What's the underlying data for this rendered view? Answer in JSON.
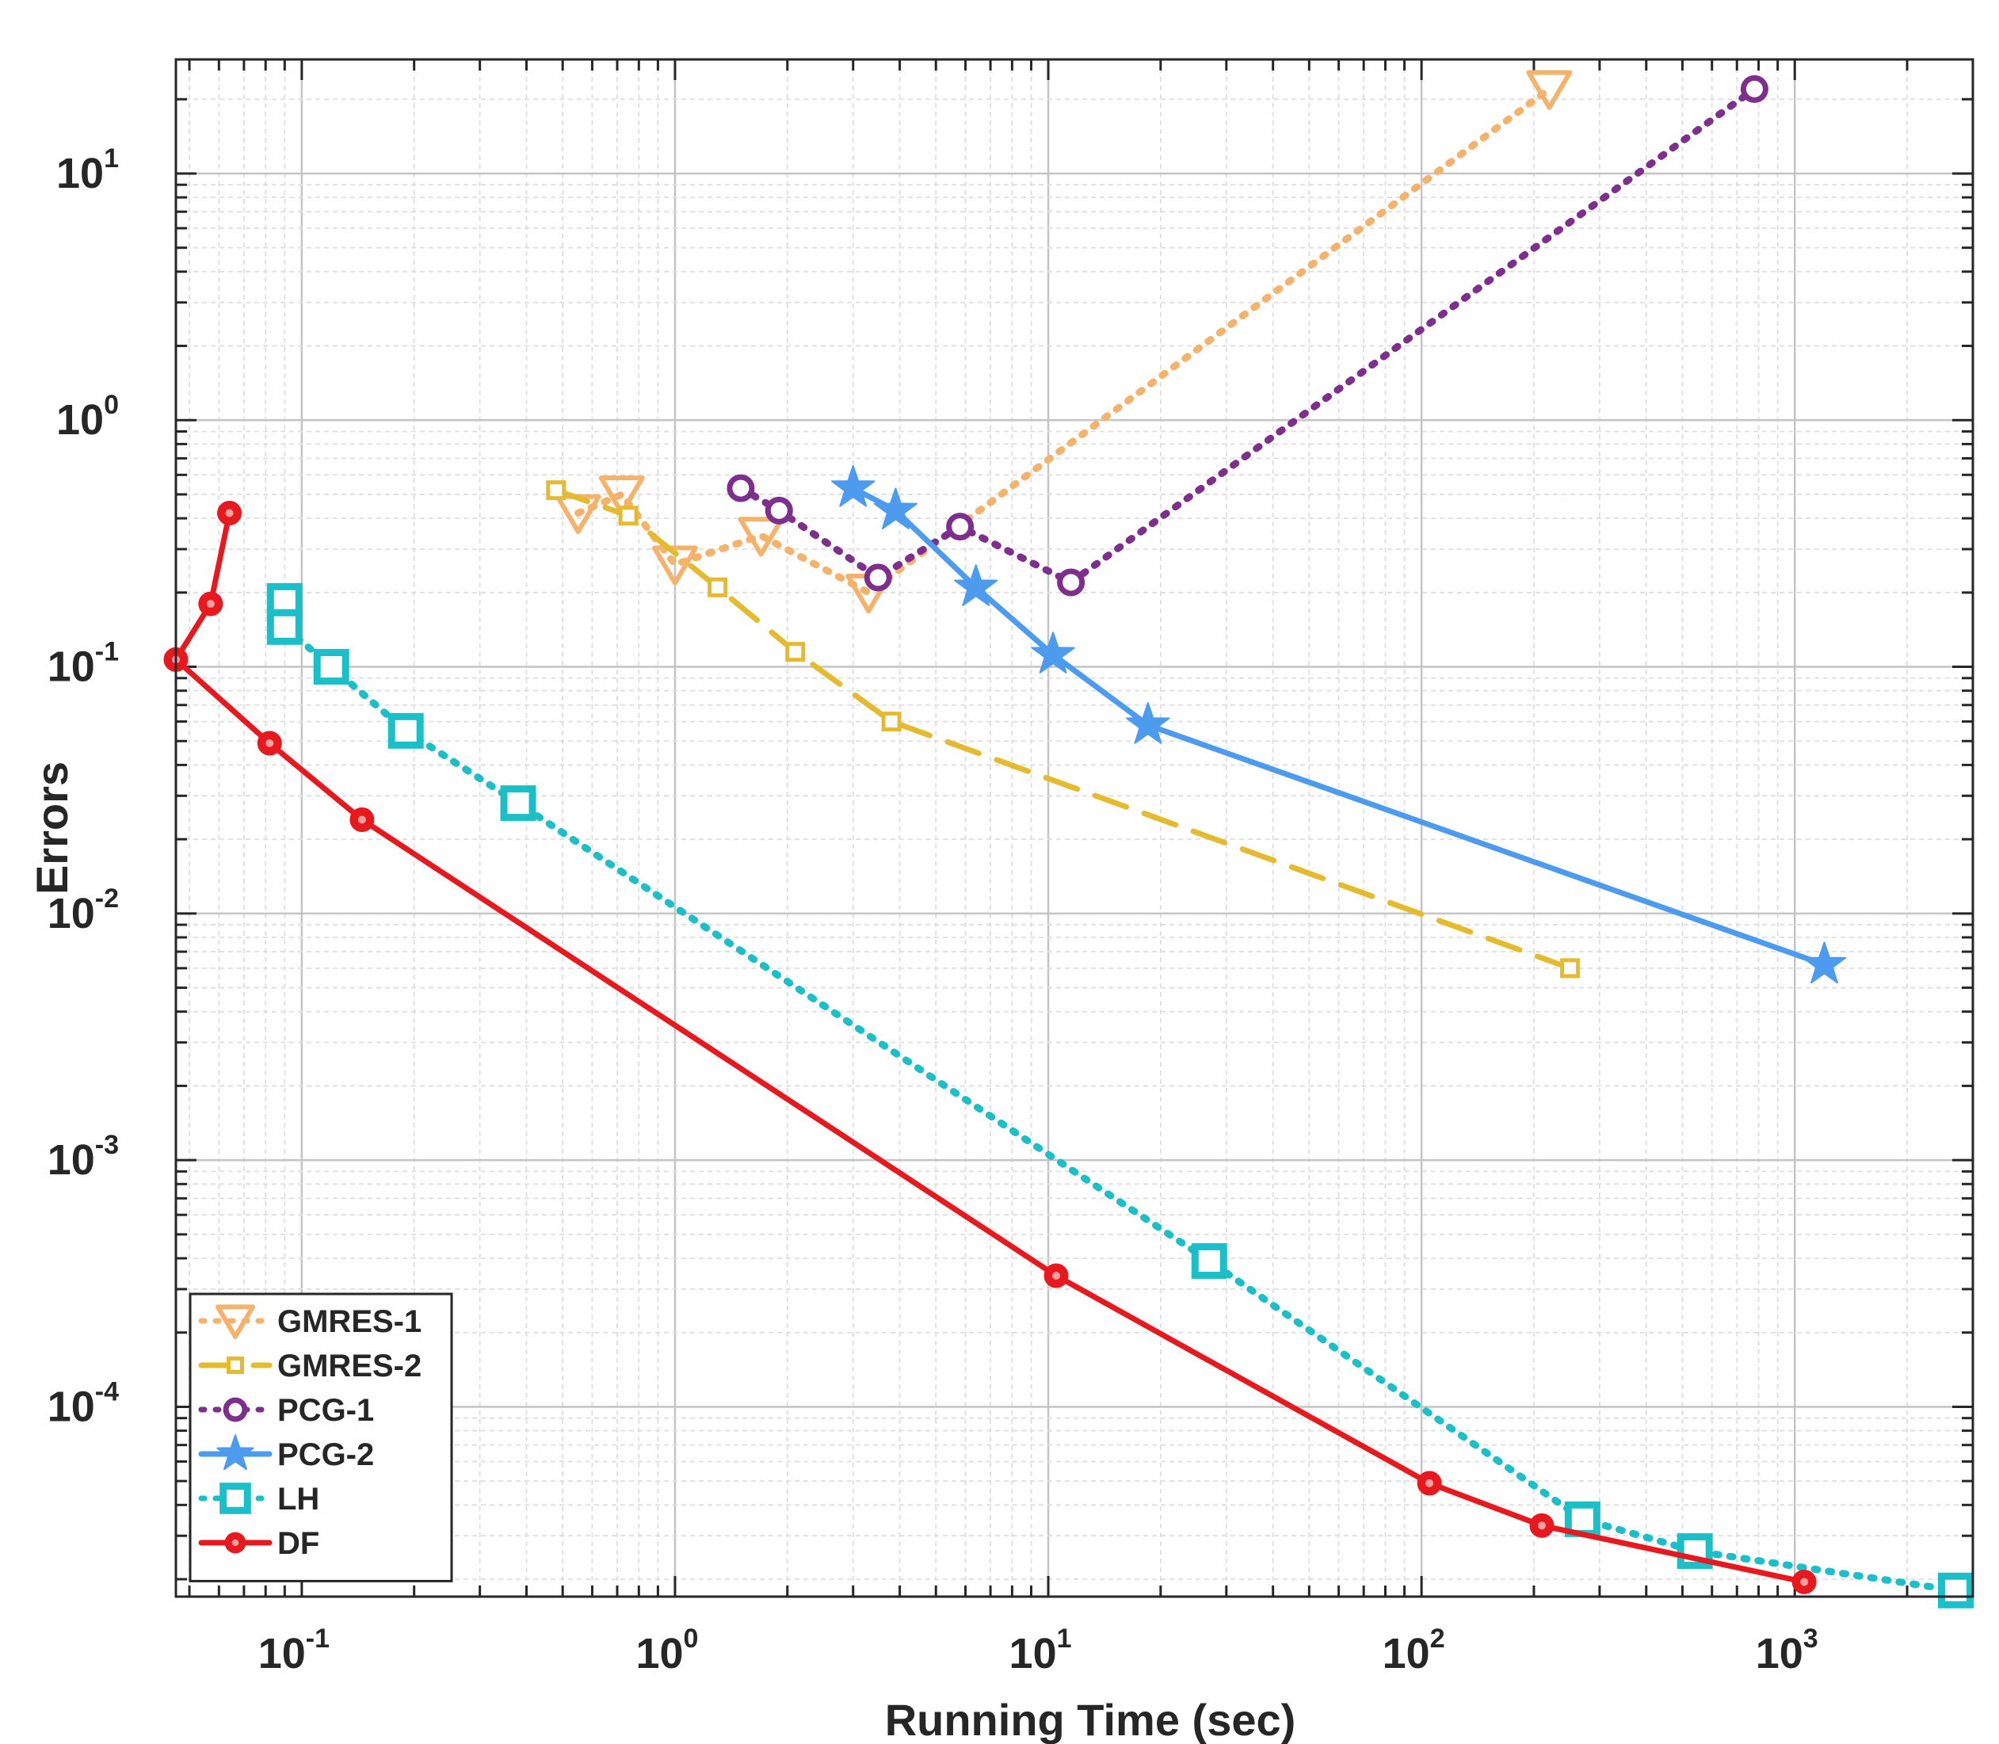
{
  "chart_data": {
    "type": "line",
    "title": "",
    "xlabel": "Running Time (sec)",
    "ylabel": "Errors",
    "xscale": "log",
    "yscale": "log",
    "xlim": [
      0.046,
      3000
    ],
    "ylim": [
      1.7e-05,
      29
    ],
    "grid": true,
    "minor_grid": true,
    "legend_position": "bottom-left",
    "x_ticks": [
      {
        "base": "10",
        "exp": "-1",
        "value": 0.1
      },
      {
        "base": "10",
        "exp": "0",
        "value": 1
      },
      {
        "base": "10",
        "exp": "1",
        "value": 10
      },
      {
        "base": "10",
        "exp": "2",
        "value": 100
      },
      {
        "base": "10",
        "exp": "3",
        "value": 1000
      }
    ],
    "y_ticks": [
      {
        "base": "10",
        "exp": "-4",
        "value": 0.0001
      },
      {
        "base": "10",
        "exp": "-3",
        "value": 0.001
      },
      {
        "base": "10",
        "exp": "-2",
        "value": 0.01
      },
      {
        "base": "10",
        "exp": "-1",
        "value": 0.1
      },
      {
        "base": "10",
        "exp": "0",
        "value": 1
      },
      {
        "base": "10",
        "exp": "1",
        "value": 10
      }
    ],
    "series": [
      {
        "name": "GMRES-1",
        "color": "#F5B26B",
        "line": "dotted",
        "marker": "triangle-down",
        "x": [
          0.55,
          0.72,
          1.0,
          1.7,
          3.3,
          220
        ],
        "y": [
          0.42,
          0.5,
          0.26,
          0.34,
          0.2,
          22
        ]
      },
      {
        "name": "GMRES-2",
        "color": "#E4BB2F",
        "line": "dashed",
        "marker": "square-small",
        "x": [
          0.48,
          0.75,
          1.3,
          2.1,
          3.8,
          250
        ],
        "y": [
          0.52,
          0.41,
          0.21,
          0.115,
          0.06,
          0.006
        ]
      },
      {
        "name": "PCG-1",
        "color": "#7E2F8E",
        "line": "dotted",
        "marker": "circle",
        "x": [
          1.5,
          1.9,
          3.5,
          5.8,
          11.5,
          780
        ],
        "y": [
          0.53,
          0.43,
          0.23,
          0.37,
          0.22,
          22
        ]
      },
      {
        "name": "PCG-2",
        "color": "#4D9BEF",
        "line": "solid",
        "marker": "star",
        "x": [
          3.0,
          3.9,
          6.4,
          10.3,
          18.5,
          1200
        ],
        "y": [
          0.53,
          0.43,
          0.21,
          0.112,
          0.058,
          0.0062
        ]
      },
      {
        "name": "LH",
        "color": "#1BBFC8",
        "line": "dotted",
        "marker": "square-large",
        "x": [
          0.09,
          0.09,
          0.12,
          0.19,
          0.38,
          27,
          270,
          540,
          2700
        ],
        "y": [
          0.185,
          0.145,
          0.1,
          0.055,
          0.028,
          0.00039,
          3.5e-05,
          2.6e-05,
          1.8e-05
        ]
      },
      {
        "name": "DF",
        "color": "#E8191E",
        "line": "solid",
        "marker": "circle-filled",
        "x": [
          0.064,
          0.057,
          0.046,
          0.082,
          0.145,
          10.5,
          105,
          210,
          1060
        ],
        "y": [
          0.42,
          0.18,
          0.107,
          0.049,
          0.024,
          0.00034,
          4.9e-05,
          3.3e-05,
          1.95e-05
        ]
      }
    ]
  }
}
